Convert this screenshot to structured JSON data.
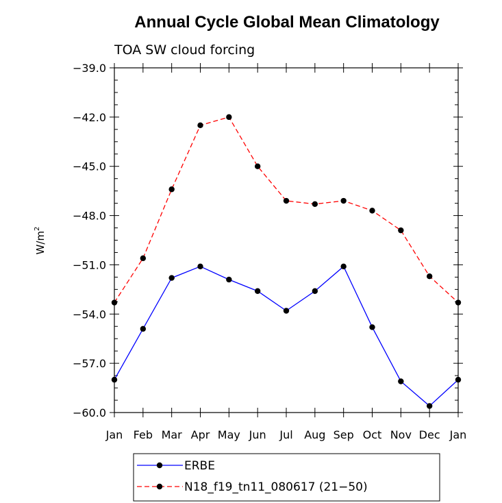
{
  "chart_data": {
    "type": "line",
    "title": "Annual Cycle Global Mean Climatology",
    "subtitle": "TOA SW cloud forcing",
    "ylabel": "W/m",
    "ylabel_superscript": "2",
    "xlabel": "",
    "categories": [
      "Jan",
      "Feb",
      "Mar",
      "Apr",
      "May",
      "Jun",
      "Jul",
      "Aug",
      "Sep",
      "Oct",
      "Nov",
      "Dec",
      "Jan"
    ],
    "ylim": [
      -60.0,
      -39.0
    ],
    "yticks": [
      -39.0,
      -42.0,
      -45.0,
      -48.0,
      -51.0,
      -54.0,
      -57.0,
      -60.0
    ],
    "ytick_labels": [
      "−39.0",
      "−42.0",
      "−45.0",
      "−48.0",
      "−51.0",
      "−54.0",
      "−57.0",
      "−60.0"
    ],
    "grid": false,
    "legend_position": "bottom",
    "series": [
      {
        "name": "ERBE",
        "color": "#0000ff",
        "dash": "solid",
        "values": [
          -58.0,
          -54.9,
          -51.8,
          -51.1,
          -51.9,
          -52.6,
          -53.8,
          -52.6,
          -51.1,
          -54.8,
          -58.1,
          -59.6,
          -58.0
        ]
      },
      {
        "name": "N18_f19_tn11_080617 (21−50)",
        "color": "#ff0000",
        "dash": "dashed",
        "values": [
          -53.3,
          -50.6,
          -46.4,
          -42.5,
          -42.0,
          -45.0,
          -47.1,
          -47.3,
          -47.1,
          -47.7,
          -48.9,
          -51.7,
          -53.3
        ]
      }
    ]
  }
}
